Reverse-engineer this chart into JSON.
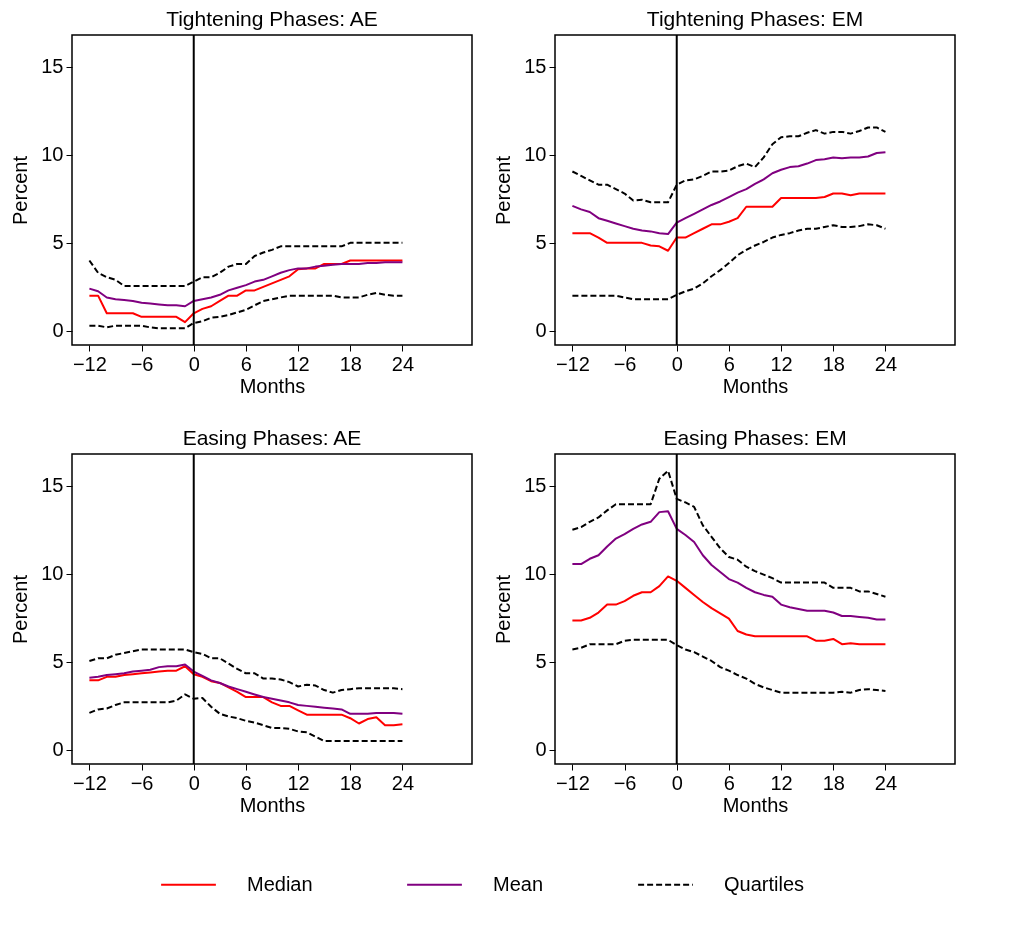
{
  "chart_data": [
    {
      "type": "line",
      "title": "Tightening Phases: AE",
      "xlabel": "Months",
      "ylabel": "Percent",
      "x": [
        -12,
        -11,
        -10,
        -9,
        -8,
        -7,
        -6,
        -5,
        -4,
        -3,
        -2,
        -1,
        0,
        1,
        2,
        3,
        4,
        5,
        6,
        7,
        8,
        9,
        10,
        11,
        12,
        13,
        14,
        15,
        16,
        17,
        18,
        19,
        20,
        21,
        22,
        23,
        24
      ],
      "xlim": [
        -14,
        32
      ],
      "xticks": [
        -12,
        -6,
        0,
        6,
        12,
        18,
        24
      ],
      "ylim": [
        -0.8,
        16.8
      ],
      "yticks": [
        0,
        5,
        10,
        15
      ],
      "legend": "bottom",
      "ref_lines": [
        {
          "axis": "x",
          "value": 0,
          "color": "#000000"
        }
      ],
      "series": [
        {
          "name": "Median",
          "color": "#ff0000",
          "line_style": "solid",
          "values": [
            2.0,
            2.0,
            1.0,
            1.0,
            1.0,
            1.0,
            0.8,
            0.8,
            0.8,
            0.8,
            0.8,
            0.5,
            1.0,
            1.25,
            1.4,
            1.7,
            2.0,
            2.0,
            2.3,
            2.3,
            2.5,
            2.7,
            2.9,
            3.1,
            3.5,
            3.55,
            3.55,
            3.8,
            3.8,
            3.8,
            4.0,
            4.0,
            4.0,
            4.0,
            4.0,
            4.0,
            4.0
          ]
        },
        {
          "name": "Mean",
          "color": "#800080",
          "line_style": "solid",
          "values": [
            2.4,
            2.25,
            1.9,
            1.8,
            1.75,
            1.7,
            1.6,
            1.55,
            1.5,
            1.45,
            1.45,
            1.4,
            1.7,
            1.8,
            1.9,
            2.05,
            2.3,
            2.45,
            2.6,
            2.8,
            2.9,
            3.1,
            3.3,
            3.45,
            3.55,
            3.55,
            3.65,
            3.7,
            3.75,
            3.8,
            3.8,
            3.8,
            3.85,
            3.85,
            3.9,
            3.9,
            3.9
          ]
        },
        {
          "name": "Quartiles",
          "color": "#000000",
          "line_style": "dashed",
          "values": [
            4.0,
            3.3,
            3.05,
            2.9,
            2.55,
            2.55,
            2.55,
            2.55,
            2.55,
            2.55,
            2.55,
            2.55,
            2.8,
            3.05,
            3.05,
            3.3,
            3.65,
            3.8,
            3.8,
            4.25,
            4.45,
            4.6,
            4.8,
            4.8,
            4.8,
            4.8,
            4.8,
            4.8,
            4.8,
            4.8,
            5.0,
            5.0,
            5.0,
            5.0,
            5.0,
            5.0,
            5.0
          ]
        },
        {
          "color": "#000000",
          "line_style": "dashed",
          "values": [
            0.3,
            0.3,
            0.2,
            0.3,
            0.3,
            0.3,
            0.3,
            0.2,
            0.15,
            0.15,
            0.15,
            0.15,
            0.45,
            0.55,
            0.75,
            0.8,
            0.9,
            1.05,
            1.2,
            1.45,
            1.7,
            1.8,
            1.9,
            2.0,
            2.0,
            2.0,
            2.0,
            2.0,
            2.0,
            1.9,
            1.9,
            1.9,
            2.05,
            2.15,
            2.05,
            2.0,
            2.0
          ]
        }
      ]
    },
    {
      "type": "line",
      "title": "Tightening Phases: EM",
      "xlabel": "Months",
      "ylabel": "Percent",
      "x": [
        -12,
        -11,
        -10,
        -9,
        -8,
        -7,
        -6,
        -5,
        -4,
        -3,
        -2,
        -1,
        0,
        1,
        2,
        3,
        4,
        5,
        6,
        7,
        8,
        9,
        10,
        11,
        12,
        13,
        14,
        15,
        16,
        17,
        18,
        19,
        20,
        21,
        22,
        23,
        24
      ],
      "xlim": [
        -14,
        32
      ],
      "xticks": [
        -12,
        -6,
        0,
        6,
        12,
        18,
        24
      ],
      "ylim": [
        -0.8,
        16.8
      ],
      "yticks": [
        0,
        5,
        10,
        15
      ],
      "legend": "bottom",
      "ref_lines": [
        {
          "axis": "x",
          "value": 0,
          "color": "#000000"
        }
      ],
      "series": [
        {
          "name": "Median",
          "color": "#ff0000",
          "line_style": "solid",
          "values": [
            5.55,
            5.55,
            5.55,
            5.3,
            5.0,
            5.0,
            5.0,
            5.0,
            5.0,
            4.85,
            4.8,
            4.55,
            5.3,
            5.3,
            5.55,
            5.8,
            6.05,
            6.05,
            6.2,
            6.4,
            7.05,
            7.05,
            7.05,
            7.05,
            7.55,
            7.55,
            7.55,
            7.55,
            7.55,
            7.6,
            7.8,
            7.8,
            7.7,
            7.8,
            7.8,
            7.8,
            7.8
          ]
        },
        {
          "name": "Mean",
          "color": "#800080",
          "line_style": "solid",
          "values": [
            7.1,
            6.9,
            6.75,
            6.4,
            6.25,
            6.1,
            5.95,
            5.8,
            5.7,
            5.65,
            5.55,
            5.5,
            6.15,
            6.4,
            6.65,
            6.9,
            7.15,
            7.35,
            7.6,
            7.85,
            8.05,
            8.35,
            8.6,
            8.95,
            9.15,
            9.3,
            9.35,
            9.5,
            9.7,
            9.75,
            9.85,
            9.8,
            9.85,
            9.85,
            9.9,
            10.1,
            10.15
          ]
        },
        {
          "name": "Quartiles",
          "color": "#000000",
          "line_style": "dashed",
          "values": [
            9.05,
            8.8,
            8.55,
            8.3,
            8.3,
            8.05,
            7.8,
            7.4,
            7.45,
            7.3,
            7.3,
            7.3,
            8.3,
            8.55,
            8.6,
            8.8,
            9.05,
            9.05,
            9.1,
            9.35,
            9.5,
            9.3,
            9.85,
            10.6,
            11.0,
            11.05,
            11.05,
            11.25,
            11.4,
            11.2,
            11.3,
            11.3,
            11.2,
            11.35,
            11.55,
            11.55,
            11.3
          ]
        },
        {
          "color": "#000000",
          "line_style": "dashed",
          "values": [
            2.0,
            2.0,
            2.0,
            2.0,
            2.0,
            2.0,
            1.9,
            1.8,
            1.8,
            1.8,
            1.8,
            1.8,
            2.05,
            2.25,
            2.4,
            2.7,
            3.1,
            3.45,
            3.85,
            4.3,
            4.6,
            4.85,
            5.05,
            5.3,
            5.45,
            5.55,
            5.7,
            5.8,
            5.8,
            5.9,
            6.0,
            5.9,
            5.9,
            5.95,
            6.05,
            6.0,
            5.8
          ]
        }
      ]
    },
    {
      "type": "line",
      "title": "Easing Phases: AE",
      "xlabel": "Months",
      "ylabel": "Percent",
      "x": [
        -12,
        -11,
        -10,
        -9,
        -8,
        -7,
        -6,
        -5,
        -4,
        -3,
        -2,
        -1,
        0,
        1,
        2,
        3,
        4,
        5,
        6,
        7,
        8,
        9,
        10,
        11,
        12,
        13,
        14,
        15,
        16,
        17,
        18,
        19,
        20,
        21,
        22,
        23,
        24
      ],
      "xlim": [
        -14,
        32
      ],
      "xticks": [
        -12,
        -6,
        0,
        6,
        12,
        18,
        24
      ],
      "ylim": [
        -0.8,
        16.8
      ],
      "yticks": [
        0,
        5,
        10,
        15
      ],
      "legend": "bottom",
      "ref_lines": [
        {
          "axis": "x",
          "value": 0,
          "color": "#000000"
        }
      ],
      "series": [
        {
          "name": "Median",
          "color": "#ff0000",
          "line_style": "solid",
          "values": [
            3.95,
            3.95,
            4.15,
            4.15,
            4.25,
            4.3,
            4.35,
            4.4,
            4.45,
            4.5,
            4.5,
            4.75,
            4.3,
            4.15,
            3.9,
            3.8,
            3.55,
            3.3,
            3.0,
            3.0,
            3.0,
            2.7,
            2.5,
            2.5,
            2.25,
            2.0,
            2.0,
            2.0,
            2.0,
            2.0,
            1.8,
            1.5,
            1.75,
            1.85,
            1.4,
            1.4,
            1.45
          ]
        },
        {
          "name": "Mean",
          "color": "#800080",
          "line_style": "solid",
          "values": [
            4.1,
            4.15,
            4.25,
            4.3,
            4.35,
            4.45,
            4.5,
            4.55,
            4.7,
            4.75,
            4.75,
            4.85,
            4.45,
            4.2,
            3.95,
            3.8,
            3.6,
            3.45,
            3.3,
            3.15,
            3.0,
            2.9,
            2.8,
            2.7,
            2.55,
            2.5,
            2.45,
            2.4,
            2.35,
            2.3,
            2.05,
            2.05,
            2.05,
            2.1,
            2.1,
            2.1,
            2.05
          ]
        },
        {
          "name": "Quartiles",
          "color": "#000000",
          "line_style": "dashed",
          "values": [
            5.05,
            5.2,
            5.2,
            5.4,
            5.5,
            5.6,
            5.7,
            5.7,
            5.7,
            5.7,
            5.7,
            5.7,
            5.55,
            5.45,
            5.2,
            5.2,
            4.9,
            4.6,
            4.35,
            4.35,
            4.05,
            4.05,
            4.0,
            3.85,
            3.6,
            3.7,
            3.65,
            3.4,
            3.25,
            3.4,
            3.45,
            3.5,
            3.5,
            3.5,
            3.5,
            3.5,
            3.45
          ]
        },
        {
          "color": "#000000",
          "line_style": "dashed",
          "values": [
            2.1,
            2.3,
            2.35,
            2.55,
            2.7,
            2.7,
            2.7,
            2.7,
            2.7,
            2.7,
            2.8,
            3.15,
            2.9,
            2.95,
            2.45,
            2.05,
            1.9,
            1.8,
            1.65,
            1.55,
            1.4,
            1.25,
            1.25,
            1.2,
            1.05,
            1.0,
            0.75,
            0.5,
            0.5,
            0.5,
            0.5,
            0.5,
            0.5,
            0.5,
            0.5,
            0.5,
            0.5
          ]
        }
      ]
    },
    {
      "type": "line",
      "title": "Easing Phases: EM",
      "xlabel": "Months",
      "ylabel": "Percent",
      "x": [
        -12,
        -11,
        -10,
        -9,
        -8,
        -7,
        -6,
        -5,
        -4,
        -3,
        -2,
        -1,
        0,
        1,
        2,
        3,
        4,
        5,
        6,
        7,
        8,
        9,
        10,
        11,
        12,
        13,
        14,
        15,
        16,
        17,
        18,
        19,
        20,
        21,
        22,
        23,
        24
      ],
      "xlim": [
        -14,
        32
      ],
      "xticks": [
        -12,
        -6,
        0,
        6,
        12,
        18,
        24
      ],
      "ylim": [
        -0.8,
        16.8
      ],
      "yticks": [
        0,
        5,
        10,
        15
      ],
      "legend": "bottom",
      "ref_lines": [
        {
          "axis": "x",
          "value": 0,
          "color": "#000000"
        }
      ],
      "series": [
        {
          "name": "Median",
          "color": "#ff0000",
          "line_style": "solid",
          "values": [
            7.35,
            7.35,
            7.5,
            7.8,
            8.25,
            8.25,
            8.45,
            8.75,
            8.95,
            8.95,
            9.3,
            9.85,
            9.6,
            9.2,
            8.8,
            8.4,
            8.05,
            7.75,
            7.45,
            6.75,
            6.55,
            6.45,
            6.45,
            6.45,
            6.45,
            6.45,
            6.45,
            6.45,
            6.2,
            6.2,
            6.3,
            6.0,
            6.05,
            6.0,
            6.0,
            6.0,
            6.0
          ]
        },
        {
          "name": "Mean",
          "color": "#800080",
          "line_style": "solid",
          "values": [
            10.55,
            10.55,
            10.85,
            11.05,
            11.55,
            12.0,
            12.25,
            12.55,
            12.8,
            12.95,
            13.5,
            13.55,
            12.55,
            12.2,
            11.8,
            11.05,
            10.5,
            10.1,
            9.7,
            9.5,
            9.2,
            8.95,
            8.8,
            8.7,
            8.25,
            8.1,
            8.0,
            7.9,
            7.9,
            7.9,
            7.8,
            7.6,
            7.6,
            7.55,
            7.5,
            7.4,
            7.4
          ]
        },
        {
          "name": "Quartiles",
          "color": "#000000",
          "line_style": "dashed",
          "values": [
            12.5,
            12.65,
            12.95,
            13.2,
            13.6,
            13.95,
            13.95,
            13.95,
            13.95,
            13.95,
            15.4,
            15.85,
            14.25,
            14.05,
            13.8,
            12.75,
            12.1,
            11.45,
            10.95,
            10.8,
            10.4,
            10.15,
            9.95,
            9.75,
            9.5,
            9.5,
            9.5,
            9.5,
            9.5,
            9.5,
            9.2,
            9.2,
            9.2,
            9.0,
            9.0,
            8.85,
            8.7
          ]
        },
        {
          "color": "#000000",
          "line_style": "dashed",
          "values": [
            5.7,
            5.8,
            6.0,
            6.0,
            6.0,
            6.0,
            6.2,
            6.25,
            6.25,
            6.25,
            6.25,
            6.25,
            5.95,
            5.7,
            5.55,
            5.3,
            5.05,
            4.7,
            4.5,
            4.25,
            4.05,
            3.75,
            3.55,
            3.4,
            3.25,
            3.25,
            3.25,
            3.25,
            3.25,
            3.25,
            3.25,
            3.3,
            3.25,
            3.4,
            3.45,
            3.4,
            3.35
          ]
        }
      ]
    }
  ]
}
